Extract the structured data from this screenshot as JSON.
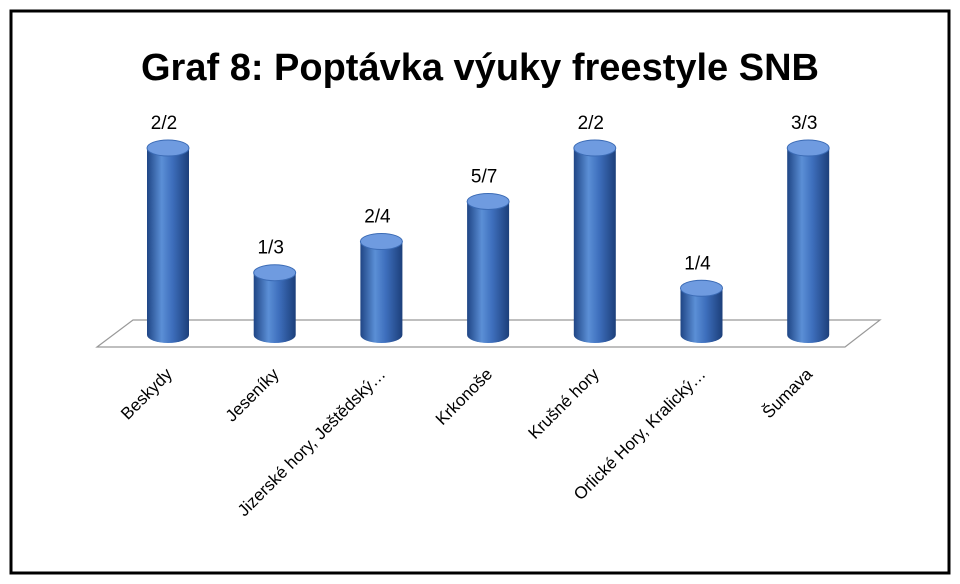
{
  "chart_data": {
    "type": "bar",
    "title": "Graf 8: Poptávka výuky freestyle SNB",
    "categories": [
      "Beskydy",
      "Jeseníky",
      "Jizerské hory, Ještědský…",
      "Krkonoše",
      "Krušné hory",
      "Orlické Hory, Kralický…",
      "Šumava"
    ],
    "values": [
      1,
      0.333,
      0.5,
      0.714,
      1,
      0.25,
      1
    ],
    "value_labels": [
      "2/2",
      "1/3",
      "2/4",
      "5/7",
      "2/2",
      "1/4",
      "3/3"
    ],
    "color": "#3b6bb5"
  }
}
